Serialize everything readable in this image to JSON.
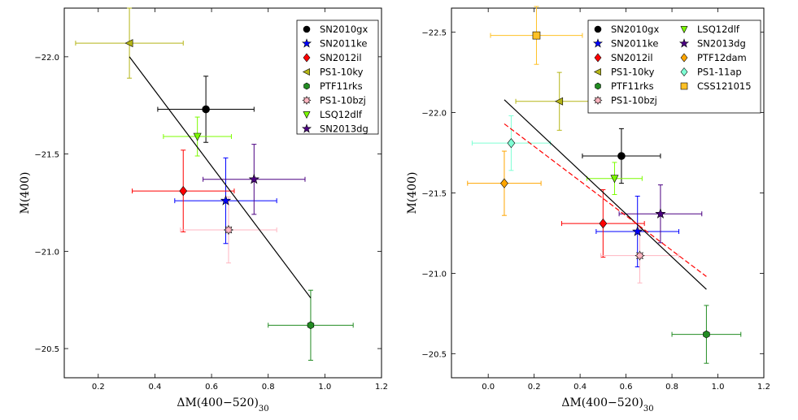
{
  "chart_data": [
    {
      "type": "scatter",
      "xlabel": "ΔM(400−520)30",
      "ylabel": "M(400)",
      "xlim": [
        0.08,
        1.2
      ],
      "ylim": [
        -20.35,
        -22.25
      ],
      "y_inverted": true,
      "xticks": [
        0.2,
        0.4,
        0.6,
        0.8,
        1.0,
        1.2
      ],
      "xtick_labels": [
        "0.2",
        "0.4",
        "0.6",
        "0.8",
        "1.0",
        "1.2"
      ],
      "yticks": [
        -22.0,
        -21.5,
        -21.0,
        -20.5
      ],
      "ytick_labels": [
        "−22.0",
        "−21.5",
        "−21.0",
        "−20.5"
      ],
      "legend_position": "upper-right",
      "legend": [
        "SN2010gx",
        "SN2011ke",
        "SN2012il",
        "PS1-10ky",
        "PTF11rks",
        "PS1-10bzj",
        "LSQ12dlf",
        "SN2013dg"
      ],
      "series": [
        {
          "name": "SN2010gx",
          "color": "#000000",
          "marker": "circle",
          "x": 0.58,
          "y": -21.73,
          "xerr": 0.17,
          "yerr": 0.17
        },
        {
          "name": "SN2011ke",
          "color": "#0000ff",
          "marker": "star",
          "x": 0.65,
          "y": -21.26,
          "xerr": 0.18,
          "yerr": 0.22
        },
        {
          "name": "SN2012il",
          "color": "#ff0000",
          "marker": "diamond",
          "x": 0.5,
          "y": -21.31,
          "xerr": 0.18,
          "yerr": 0.21
        },
        {
          "name": "PS1-10ky",
          "color": "#b5b516",
          "marker": "triangle-left",
          "x": 0.31,
          "y": -22.07,
          "xerr": 0.19,
          "yerr": 0.18
        },
        {
          "name": "PTF11rks",
          "color": "#228b22",
          "marker": "hexagon",
          "x": 0.95,
          "y": -20.62,
          "xerr": 0.15,
          "yerr": 0.18
        },
        {
          "name": "PS1-10bzj",
          "color": "#ffb6c1",
          "marker": "star8",
          "x": 0.66,
          "y": -21.11,
          "xerr": 0.17,
          "yerr": 0.17
        },
        {
          "name": "LSQ12dlf",
          "color": "#7cfc00",
          "marker": "triangle-down",
          "x": 0.55,
          "y": -21.59,
          "xerr": 0.12,
          "yerr": 0.1
        },
        {
          "name": "SN2013dg",
          "color": "#4b0082",
          "marker": "star",
          "x": 0.75,
          "y": -21.37,
          "xerr": 0.18,
          "yerr": 0.18
        }
      ],
      "fits": [
        {
          "name": "fit",
          "color": "#000000",
          "style": "solid",
          "x": [
            0.31,
            0.95
          ],
          "y": [
            -22.0,
            -20.76
          ]
        }
      ]
    },
    {
      "type": "scatter",
      "xlabel": "ΔM(400−520)30",
      "ylabel": "M(400)",
      "xlim": [
        -0.16,
        1.2
      ],
      "ylim": [
        -20.35,
        -22.65
      ],
      "y_inverted": true,
      "xticks": [
        0.0,
        0.2,
        0.4,
        0.6,
        0.8,
        1.0,
        1.2
      ],
      "xtick_labels": [
        "0.0",
        "0.2",
        "0.4",
        "0.6",
        "0.8",
        "1.0",
        "1.2"
      ],
      "yticks": [
        -22.5,
        -22.0,
        -21.5,
        -21.0,
        -20.5
      ],
      "ytick_labels": [
        "−22.5",
        "−22.0",
        "−21.5",
        "−21.0",
        "−20.5"
      ],
      "legend_position": "upper-right",
      "legend": [
        "SN2010gx",
        "SN2011ke",
        "SN2012il",
        "PS1-10ky",
        "PTF11rks",
        "PS1-10bzj",
        "LSQ12dlf",
        "SN2013dg",
        "PTF12dam",
        "PS1-11ap",
        "CSS121015"
      ],
      "series": [
        {
          "name": "SN2010gx",
          "color": "#000000",
          "marker": "circle",
          "x": 0.58,
          "y": -21.73,
          "xerr": 0.17,
          "yerr": 0.17
        },
        {
          "name": "SN2011ke",
          "color": "#0000ff",
          "marker": "star",
          "x": 0.65,
          "y": -21.26,
          "xerr": 0.18,
          "yerr": 0.22
        },
        {
          "name": "SN2012il",
          "color": "#ff0000",
          "marker": "diamond",
          "x": 0.5,
          "y": -21.31,
          "xerr": 0.18,
          "yerr": 0.21
        },
        {
          "name": "PS1-10ky",
          "color": "#b5b516",
          "marker": "triangle-left",
          "x": 0.31,
          "y": -22.07,
          "xerr": 0.19,
          "yerr": 0.18
        },
        {
          "name": "PTF11rks",
          "color": "#228b22",
          "marker": "hexagon",
          "x": 0.95,
          "y": -20.62,
          "xerr": 0.15,
          "yerr": 0.18
        },
        {
          "name": "PS1-10bzj",
          "color": "#ffb6c1",
          "marker": "star8",
          "x": 0.66,
          "y": -21.11,
          "xerr": 0.17,
          "yerr": 0.17
        },
        {
          "name": "LSQ12dlf",
          "color": "#7cfc00",
          "marker": "triangle-down",
          "x": 0.55,
          "y": -21.59,
          "xerr": 0.12,
          "yerr": 0.1
        },
        {
          "name": "SN2013dg",
          "color": "#4b0082",
          "marker": "star",
          "x": 0.75,
          "y": -21.37,
          "xerr": 0.18,
          "yerr": 0.18
        },
        {
          "name": "PTF12dam",
          "color": "#ffa500",
          "marker": "diamond",
          "x": 0.07,
          "y": -21.56,
          "xerr": 0.16,
          "yerr": 0.2
        },
        {
          "name": "PS1-11ap",
          "color": "#7fffd4",
          "marker": "diamond",
          "x": 0.1,
          "y": -21.81,
          "xerr": 0.17,
          "yerr": 0.17
        },
        {
          "name": "CSS121015",
          "color": "#ffc125",
          "marker": "square",
          "x": 0.21,
          "y": -22.48,
          "xerr": 0.2,
          "yerr": 0.18
        }
      ],
      "fits": [
        {
          "name": "fit-solid",
          "color": "#000000",
          "style": "solid",
          "x": [
            0.07,
            0.95
          ],
          "y": [
            -22.08,
            -20.9
          ]
        },
        {
          "name": "fit-dashed",
          "color": "#ff0000",
          "style": "dashed",
          "x": [
            0.07,
            0.95
          ],
          "y": [
            -21.93,
            -20.98
          ]
        }
      ]
    }
  ]
}
